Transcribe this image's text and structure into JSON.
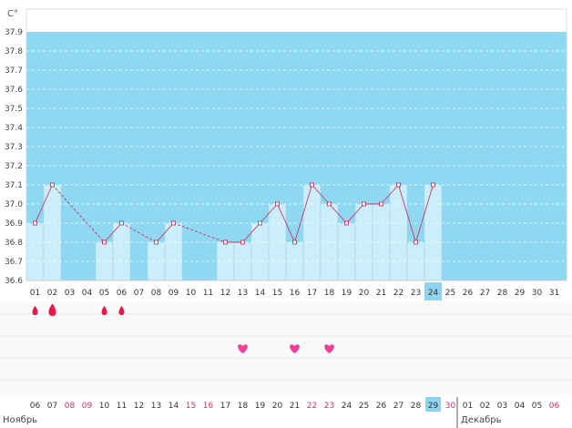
{
  "chart_data": {
    "type": "line",
    "y_unit": "C°",
    "ylim": [
      36.6,
      37.9
    ],
    "y_ticks": [
      "36.6",
      "36.7",
      "36.8",
      "36.9",
      "37.0",
      "37.1",
      "37.2",
      "37.3",
      "37.4",
      "37.5",
      "37.6",
      "37.7",
      "37.8",
      "37.9"
    ],
    "top_band_from": 36.8,
    "grid": "dashed horizontal",
    "cycle_days": [
      "01",
      "02",
      "03",
      "04",
      "05",
      "06",
      "07",
      "08",
      "09",
      "10",
      "11",
      "12",
      "13",
      "14",
      "15",
      "16",
      "17",
      "18",
      "19",
      "20",
      "21",
      "22",
      "23",
      "24",
      "25",
      "26",
      "27",
      "28",
      "29",
      "30",
      "31"
    ],
    "current_day": "24",
    "series": [
      {
        "values": [
          36.9,
          37.1,
          null,
          null,
          36.8,
          36.9,
          null,
          36.8,
          36.9,
          null,
          null,
          36.8,
          36.8,
          36.9,
          37.0,
          36.8,
          37.1,
          37.0,
          36.9,
          37.0,
          37.0,
          37.1,
          36.8,
          37.1,
          null,
          null,
          null,
          null,
          null,
          null,
          null
        ],
        "color": "#cc3366"
      }
    ],
    "markers": {
      "drop_icon_days": [
        "01",
        "02",
        "05",
        "06"
      ],
      "heart_icon_days": [
        "13",
        "16",
        "18"
      ]
    },
    "calendar_dates": [
      "06",
      "07",
      "08",
      "09",
      "10",
      "11",
      "12",
      "13",
      "14",
      "15",
      "16",
      "17",
      "18",
      "19",
      "20",
      "21",
      "22",
      "23",
      "24",
      "25",
      "26",
      "27",
      "28",
      "29",
      "30",
      "01",
      "02",
      "03",
      "04",
      "05",
      "06"
    ],
    "calendar_date_colors": [
      "#333333",
      "#333333",
      "#cc3366",
      "#cc3366",
      "#333333",
      "#333333",
      "#333333",
      "#333333",
      "#333333",
      "#cc3366",
      "#cc3366",
      "#333333",
      "#333333",
      "#333333",
      "#333333",
      "#333333",
      "#cc3366",
      "#cc3366",
      "#333333",
      "#333333",
      "#333333",
      "#333333",
      "#333333",
      "#333333",
      "#cc3366",
      "#333333",
      "#333333",
      "#333333",
      "#333333",
      "#333333",
      "#cc3366"
    ],
    "months": [
      "Ноябрь",
      "Декабрь"
    ],
    "colors": {
      "band": "#8fd8f2",
      "bar": "#cbeefb",
      "bar_edge": "#9fd2ea",
      "line": "#cc3366",
      "highlight": "#8fd3ee",
      "drop": "#e8194a",
      "heart": "#f0409a",
      "grid": "#ffffff"
    }
  }
}
